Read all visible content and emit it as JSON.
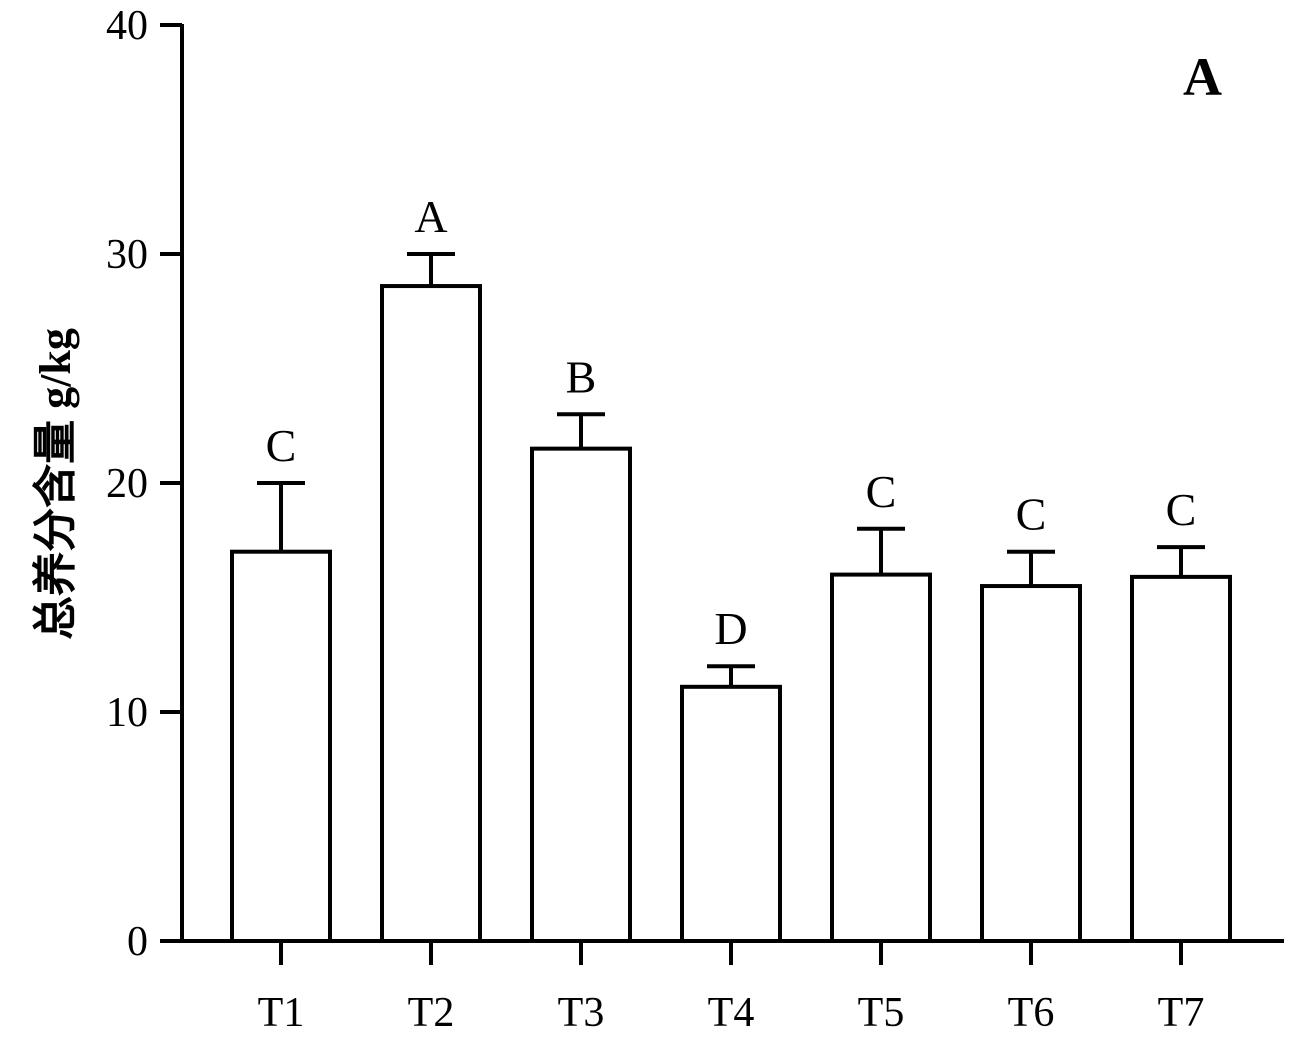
{
  "chart_data": {
    "type": "bar",
    "panel_label": "A",
    "title": "",
    "xlabel": "",
    "ylabel": "总养分含量 g/kg",
    "ylim": [
      0,
      40
    ],
    "yticks": [
      "0",
      "10",
      "20",
      "30",
      "40"
    ],
    "categories": [
      "T1",
      "T2",
      "T3",
      "T4",
      "T5",
      "T6",
      "T7"
    ],
    "values": [
      17.0,
      28.6,
      21.5,
      11.1,
      16.0,
      15.5,
      15.9
    ],
    "errors": [
      3.0,
      1.4,
      1.5,
      0.9,
      2.0,
      1.5,
      1.3
    ],
    "significance": [
      "C",
      "A",
      "B",
      "D",
      "C",
      "C",
      "C"
    ],
    "grid": false,
    "legend": "none",
    "bar_fill": "#ffffff",
    "bar_stroke": "#000000"
  }
}
